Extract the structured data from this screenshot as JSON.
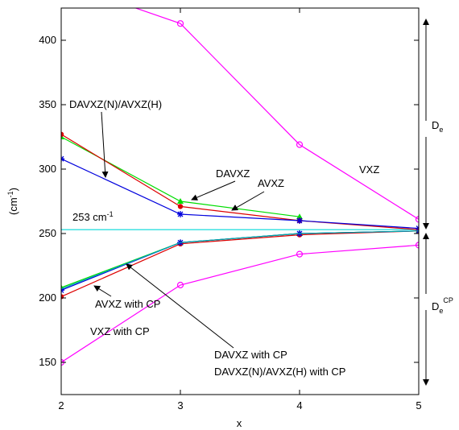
{
  "chart_data": {
    "type": "line",
    "title": "",
    "xlabel": "x",
    "ylabel": "(cm",
    "ylabel_sup": "-1",
    "ylabel_end": ")",
    "xlim": [
      2,
      5
    ],
    "ylim": [
      125,
      425
    ],
    "xticks": [
      2,
      3,
      4,
      5
    ],
    "yticks": [
      150,
      200,
      250,
      300,
      350,
      400
    ],
    "grid": false,
    "reference_line": {
      "y": 253,
      "color": "#00d8d8",
      "label": "253 cm",
      "label_sup": "-1"
    },
    "series": [
      {
        "color": "#ff00ff",
        "marker": "circle",
        "x": [
          2,
          3,
          4,
          5
        ],
        "y": [
          445,
          413,
          319,
          261
        ]
      },
      {
        "color": "#00dd00",
        "marker": "triangle",
        "x": [
          2,
          3,
          4
        ],
        "y": [
          325,
          275,
          263
        ]
      },
      {
        "color": "#dd0000",
        "marker": "dot",
        "x": [
          2,
          3,
          4,
          5
        ],
        "y": [
          327,
          271,
          260,
          253
        ]
      },
      {
        "color": "#0000dd",
        "marker": "star",
        "x": [
          2,
          3,
          4,
          5
        ],
        "y": [
          308,
          265,
          260,
          254
        ]
      },
      {
        "color": "#00dd00",
        "marker": "triangle",
        "x": [
          2,
          3,
          4,
          5
        ],
        "y": [
          208,
          243,
          250,
          252
        ]
      },
      {
        "color": "#dd0000",
        "marker": "dot",
        "x": [
          2,
          3,
          4,
          5
        ],
        "y": [
          201,
          242,
          249,
          252
        ]
      },
      {
        "color": "#0000dd",
        "marker": "star",
        "x": [
          2,
          3,
          4,
          5
        ],
        "y": [
          206,
          243,
          250,
          252
        ]
      },
      {
        "color": "#00aaaa",
        "marker": "none",
        "x": [
          2,
          3,
          4,
          5
        ],
        "y": [
          207,
          243,
          250,
          252
        ]
      },
      {
        "color": "#ff00ff",
        "marker": "circle",
        "x": [
          2,
          3,
          4,
          5
        ],
        "y": [
          150,
          210,
          234,
          241
        ]
      }
    ],
    "annotations": {
      "davxz_n": "DAVXZ(N)/AVXZ(H)",
      "davxz": "DAVXZ",
      "avxz": "AVXZ",
      "vxz": "VXZ",
      "avxz_cp": "AVXZ with CP",
      "vxz_cp": "VXZ with CP",
      "davxz_cp": "DAVXZ with CP",
      "davxz_n_cp": "DAVXZ(N)/AVXZ(H) with CP",
      "de": "D",
      "de_sub": "e",
      "decp": "D",
      "decp_sub": "e",
      "decp_sup": "CP"
    }
  }
}
